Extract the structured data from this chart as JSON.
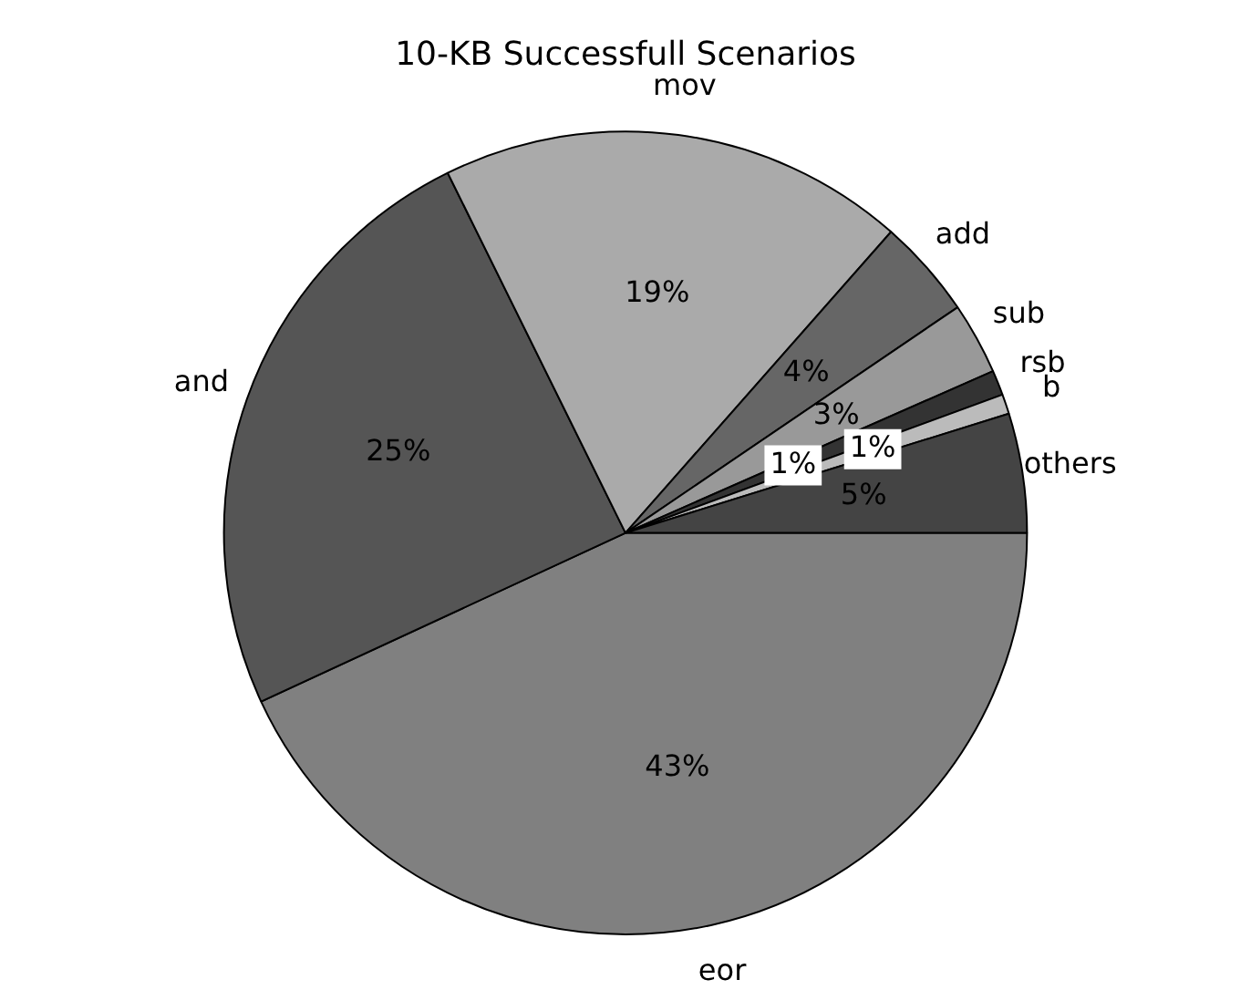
{
  "chart_data": {
    "type": "pie",
    "title": "10-KB Successfull Scenarios",
    "categories": [
      "eor",
      "and",
      "mov",
      "add",
      "sub",
      "rsb",
      "b",
      "others"
    ],
    "values": [
      43.1,
      24.6,
      18.8,
      4.0,
      2.9,
      1.0,
      0.8,
      4.8
    ],
    "value_labels": [
      "43%",
      "25%",
      "19%",
      "4%",
      "3%",
      "1%",
      "1%",
      "5%"
    ],
    "colors": [
      "#808080",
      "#555555",
      "#aaaaaa",
      "#666666",
      "#999999",
      "#333333",
      "#bbbbbb",
      "#444444"
    ],
    "legend": false
  }
}
